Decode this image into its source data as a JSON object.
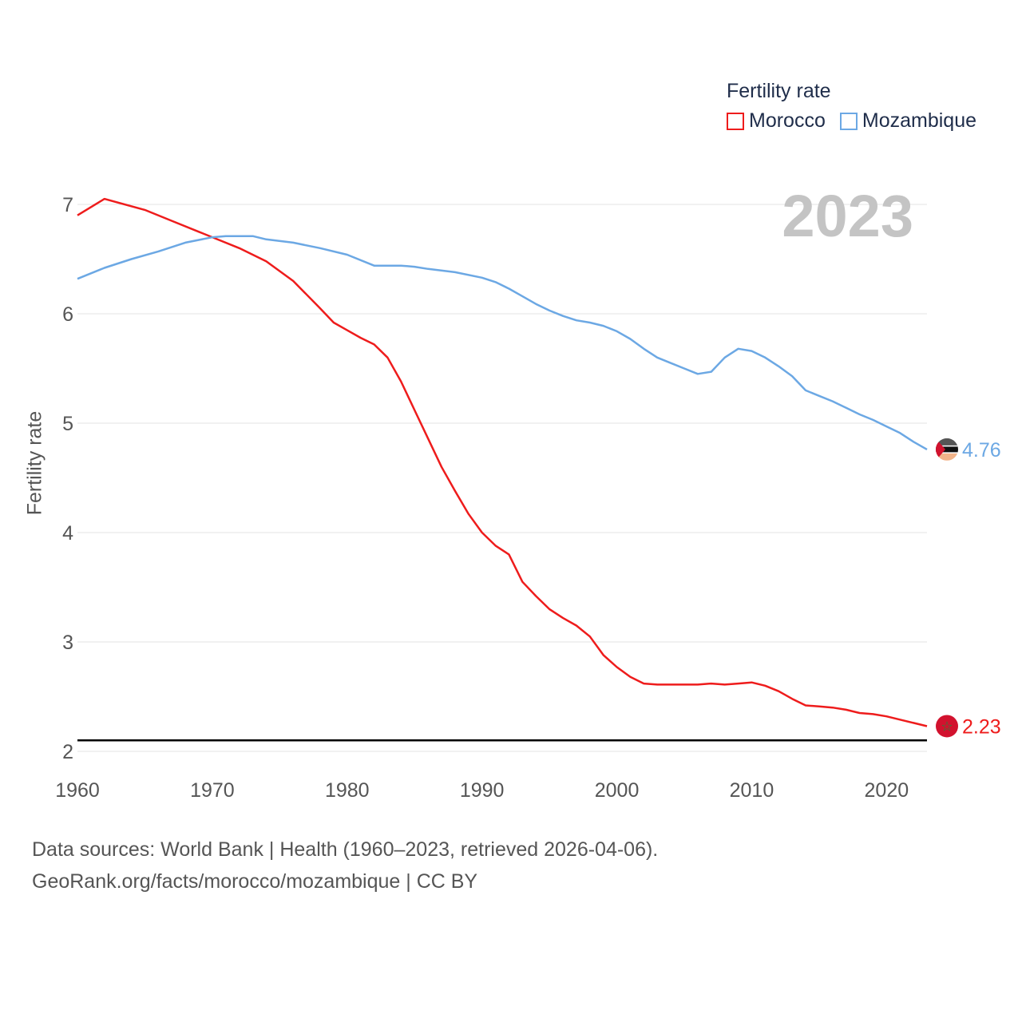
{
  "legend": {
    "title": "Fertility rate",
    "items": [
      {
        "name": "Morocco",
        "color": "#ee1c1c"
      },
      {
        "name": "Mozambique",
        "color": "#6ca8e4"
      }
    ]
  },
  "year_label": "2023",
  "footer": {
    "line1": "Data sources: World Bank | Health (1960–2023, retrieved 2026-04-06).",
    "line2": "GeoRank.org/facts/morocco/mozambique | CC BY"
  },
  "chart_data": {
    "type": "line",
    "title": "Fertility rate",
    "xlabel": "",
    "ylabel": "Fertility rate",
    "xlim": [
      1960,
      2023
    ],
    "ylim": [
      2,
      7
    ],
    "x_ticks": [
      1960,
      1970,
      1980,
      1990,
      2000,
      2010,
      2020
    ],
    "y_ticks": [
      2,
      3,
      4,
      5,
      6,
      7
    ],
    "reference_line": {
      "value": 2.1
    },
    "series": [
      {
        "name": "Morocco",
        "color": "#ee1c1c",
        "end_label": "2.23",
        "points": [
          [
            1960,
            6.9
          ],
          [
            1962,
            7.05
          ],
          [
            1965,
            6.95
          ],
          [
            1967,
            6.85
          ],
          [
            1969,
            6.75
          ],
          [
            1970,
            6.7
          ],
          [
            1972,
            6.6
          ],
          [
            1974,
            6.48
          ],
          [
            1976,
            6.3
          ],
          [
            1978,
            6.05
          ],
          [
            1979,
            5.92
          ],
          [
            1980,
            5.85
          ],
          [
            1981,
            5.78
          ],
          [
            1982,
            5.72
          ],
          [
            1983,
            5.6
          ],
          [
            1984,
            5.38
          ],
          [
            1985,
            5.12
          ],
          [
            1986,
            4.86
          ],
          [
            1987,
            4.6
          ],
          [
            1988,
            4.38
          ],
          [
            1989,
            4.17
          ],
          [
            1990,
            4.0
          ],
          [
            1991,
            3.88
          ],
          [
            1992,
            3.8
          ],
          [
            1993,
            3.55
          ],
          [
            1994,
            3.42
          ],
          [
            1995,
            3.3
          ],
          [
            1996,
            3.22
          ],
          [
            1997,
            3.15
          ],
          [
            1998,
            3.05
          ],
          [
            1999,
            2.88
          ],
          [
            2000,
            2.77
          ],
          [
            2001,
            2.68
          ],
          [
            2002,
            2.62
          ],
          [
            2003,
            2.61
          ],
          [
            2004,
            2.61
          ],
          [
            2005,
            2.61
          ],
          [
            2006,
            2.61
          ],
          [
            2007,
            2.62
          ],
          [
            2008,
            2.61
          ],
          [
            2009,
            2.62
          ],
          [
            2010,
            2.63
          ],
          [
            2011,
            2.6
          ],
          [
            2012,
            2.55
          ],
          [
            2013,
            2.48
          ],
          [
            2014,
            2.42
          ],
          [
            2015,
            2.41
          ],
          [
            2016,
            2.4
          ],
          [
            2017,
            2.38
          ],
          [
            2018,
            2.35
          ],
          [
            2019,
            2.34
          ],
          [
            2020,
            2.32
          ],
          [
            2021,
            2.29
          ],
          [
            2022,
            2.26
          ],
          [
            2023,
            2.23
          ]
        ]
      },
      {
        "name": "Mozambique",
        "color": "#6ca8e4",
        "end_label": "4.76",
        "points": [
          [
            1960,
            6.32
          ],
          [
            1962,
            6.42
          ],
          [
            1964,
            6.5
          ],
          [
            1966,
            6.57
          ],
          [
            1968,
            6.65
          ],
          [
            1970,
            6.7
          ],
          [
            1971,
            6.71
          ],
          [
            1972,
            6.71
          ],
          [
            1973,
            6.71
          ],
          [
            1974,
            6.68
          ],
          [
            1976,
            6.65
          ],
          [
            1978,
            6.6
          ],
          [
            1980,
            6.54
          ],
          [
            1982,
            6.44
          ],
          [
            1984,
            6.44
          ],
          [
            1985,
            6.43
          ],
          [
            1986,
            6.41
          ],
          [
            1988,
            6.38
          ],
          [
            1990,
            6.33
          ],
          [
            1991,
            6.29
          ],
          [
            1992,
            6.23
          ],
          [
            1993,
            6.16
          ],
          [
            1994,
            6.09
          ],
          [
            1995,
            6.03
          ],
          [
            1996,
            5.98
          ],
          [
            1997,
            5.94
          ],
          [
            1998,
            5.92
          ],
          [
            1999,
            5.89
          ],
          [
            2000,
            5.84
          ],
          [
            2001,
            5.77
          ],
          [
            2002,
            5.68
          ],
          [
            2003,
            5.6
          ],
          [
            2004,
            5.55
          ],
          [
            2005,
            5.5
          ],
          [
            2006,
            5.45
          ],
          [
            2007,
            5.47
          ],
          [
            2008,
            5.6
          ],
          [
            2009,
            5.68
          ],
          [
            2010,
            5.66
          ],
          [
            2011,
            5.6
          ],
          [
            2012,
            5.52
          ],
          [
            2013,
            5.43
          ],
          [
            2014,
            5.3
          ],
          [
            2015,
            5.25
          ],
          [
            2016,
            5.2
          ],
          [
            2017,
            5.14
          ],
          [
            2018,
            5.08
          ],
          [
            2019,
            5.03
          ],
          [
            2020,
            4.97
          ],
          [
            2021,
            4.91
          ],
          [
            2022,
            4.83
          ],
          [
            2023,
            4.76
          ]
        ]
      }
    ]
  }
}
